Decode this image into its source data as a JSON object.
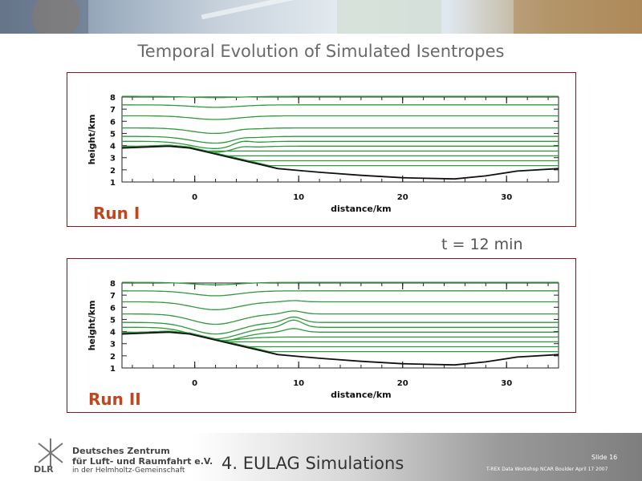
{
  "slide": {
    "title": "Temporal Evolution of Simulated Isentropes",
    "time_label": "t = 12 min",
    "footer_title": "4. EULAG Simulations",
    "slide_number": "Slide 16",
    "workshop": "T-REX Data Workshop NCAR Boulder April 17 2007",
    "org": {
      "logo_text": "DLR",
      "line1": "Deutsches Zentrum",
      "line2": "für Luft- und Raumfahrt e.V.",
      "line3": "in der Helmholtz-Gemeinschaft"
    },
    "colors": {
      "isentrope": "#2e9a3b",
      "terrain": "#111111",
      "frame": "#7a1b1b",
      "run_label": "#c0471d"
    }
  },
  "chart_data": [
    {
      "type": "line",
      "label": "Run I",
      "xlabel": "distance/km",
      "ylabel": "height/km",
      "xlim": [
        -7,
        35
      ],
      "ylim": [
        1,
        8
      ],
      "x_ticks": [
        0,
        10,
        20,
        30
      ],
      "y_ticks": [
        1,
        2,
        3,
        4,
        5,
        6,
        7,
        8
      ],
      "terrain": {
        "x": [
          -7,
          -2.5,
          -0.5,
          4,
          8,
          12,
          16,
          20,
          25,
          28,
          31,
          35
        ],
        "y": [
          3.8,
          3.95,
          3.8,
          2.9,
          2.1,
          1.8,
          1.55,
          1.35,
          1.25,
          1.5,
          1.9,
          2.1
        ]
      },
      "isentropes": [
        {
          "base": 8.05,
          "dip": 0.1,
          "bump": 0.0
        },
        {
          "base": 7.35,
          "dip": 0.2,
          "bump": 0.0
        },
        {
          "base": 6.45,
          "dip": 0.3,
          "bump": 0.0
        },
        {
          "base": 5.45,
          "dip": 0.45,
          "bump": 0.1
        },
        {
          "base": 4.75,
          "dip": 0.55,
          "bump": 0.15
        },
        {
          "base": 4.35,
          "dip": 0.6,
          "bump": 0.3
        },
        {
          "base": 3.95,
          "dip": 0.5,
          "bump": 0.2
        },
        {
          "base": 3.55,
          "dip": 0.0,
          "bump": 0.0
        },
        {
          "base": 3.15,
          "dip": 0.0,
          "bump": 0.0
        },
        {
          "base": 2.75,
          "dip": 0.0,
          "bump": 0.0
        },
        {
          "base": 2.35,
          "dip": 0.0,
          "bump": 0.0
        }
      ]
    },
    {
      "type": "line",
      "label": "Run II",
      "xlabel": "distance/km",
      "ylabel": "height/km",
      "xlim": [
        -7,
        35
      ],
      "ylim": [
        1,
        8
      ],
      "x_ticks": [
        0,
        10,
        20,
        30
      ],
      "y_ticks": [
        1,
        2,
        3,
        4,
        5,
        6,
        7,
        8
      ],
      "terrain": {
        "x": [
          -7,
          -2.5,
          -0.5,
          4,
          8,
          12,
          16,
          20,
          25,
          28,
          31,
          35
        ],
        "y": [
          3.8,
          3.95,
          3.8,
          2.9,
          2.1,
          1.8,
          1.55,
          1.35,
          1.25,
          1.5,
          1.9,
          2.1
        ]
      },
      "isentropes": [
        {
          "base": 8.05,
          "dip": 0.2,
          "bump": 0.0
        },
        {
          "base": 7.35,
          "dip": 0.4,
          "bump": 0.0
        },
        {
          "base": 6.45,
          "dip": 0.65,
          "bump": 0.1
        },
        {
          "base": 5.45,
          "dip": 0.85,
          "bump": 0.25
        },
        {
          "base": 4.75,
          "dip": 0.95,
          "bump": 0.45
        },
        {
          "base": 4.35,
          "dip": 0.95,
          "bump": 0.6
        },
        {
          "base": 3.95,
          "dip": 0.8,
          "bump": 0.3
        },
        {
          "base": 3.55,
          "dip": 0.3,
          "bump": 0.0
        },
        {
          "base": 3.15,
          "dip": 0.0,
          "bump": 0.0
        },
        {
          "base": 2.75,
          "dip": 0.0,
          "bump": 0.0
        },
        {
          "base": 2.35,
          "dip": 0.0,
          "bump": 0.0
        }
      ]
    }
  ]
}
